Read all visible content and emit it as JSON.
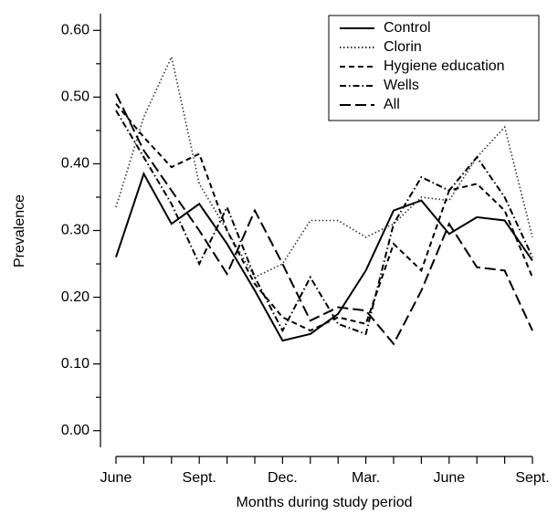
{
  "chart_data": {
    "type": "line",
    "xlabel": "Months during study period",
    "ylabel": "Prevalence",
    "categories": [
      "June",
      null,
      null,
      "Sept.",
      null,
      null,
      "Dec.",
      null,
      null,
      "Mar.",
      null,
      null,
      "June",
      null,
      null,
      "Sept."
    ],
    "series": [
      {
        "name": "Control",
        "color": "#000000",
        "dash": "solid",
        "values": [
          0.26,
          0.385,
          0.31,
          0.34,
          0.28,
          0.21,
          0.135,
          0.145,
          0.175,
          0.24,
          0.33,
          0.345,
          0.295,
          0.32,
          0.315,
          0.255
        ]
      },
      {
        "name": "Clorin",
        "color": "#333333",
        "dash": "dotted",
        "values": [
          0.335,
          0.47,
          0.56,
          0.37,
          0.3,
          0.23,
          0.25,
          0.315,
          0.315,
          0.29,
          0.31,
          0.35,
          0.345,
          0.41,
          0.455,
          0.29
        ]
      },
      {
        "name": "Hygiene education",
        "color": "#000000",
        "dash": "dashed",
        "values": [
          0.49,
          0.44,
          0.395,
          0.415,
          0.3,
          0.22,
          0.17,
          0.15,
          0.17,
          0.16,
          0.28,
          0.24,
          0.36,
          0.37,
          0.33,
          0.23
        ]
      },
      {
        "name": "Wells",
        "color": "#000000",
        "dash": "dashdot",
        "values": [
          0.48,
          0.41,
          0.34,
          0.25,
          0.335,
          0.23,
          0.15,
          0.23,
          0.16,
          0.145,
          0.31,
          0.38,
          0.36,
          0.41,
          0.35,
          0.26
        ]
      },
      {
        "name": "All",
        "color": "#000000",
        "dash": "longdash",
        "values": [
          0.505,
          0.42,
          0.36,
          0.3,
          0.235,
          0.33,
          0.25,
          0.165,
          0.185,
          0.18,
          0.13,
          0.21,
          0.31,
          0.245,
          0.24,
          0.15
        ]
      }
    ],
    "ylim": [
      -0.025,
      0.625
    ],
    "yticks": [
      {
        "value": 0,
        "label": "0.00"
      },
      {
        "value": 0.1,
        "label": "0.10"
      },
      {
        "value": 0.2,
        "label": "0.20"
      },
      {
        "value": 0.3,
        "label": "0.30"
      },
      {
        "value": 0.4,
        "label": "0.40"
      },
      {
        "value": 0.5,
        "label": "0.50"
      },
      {
        "value": 0.6,
        "label": "0.60"
      }
    ],
    "yminorticks": [
      0.05,
      0.15,
      0.25,
      0.35,
      0.45,
      0.55
    ],
    "legend": "upper right"
  }
}
